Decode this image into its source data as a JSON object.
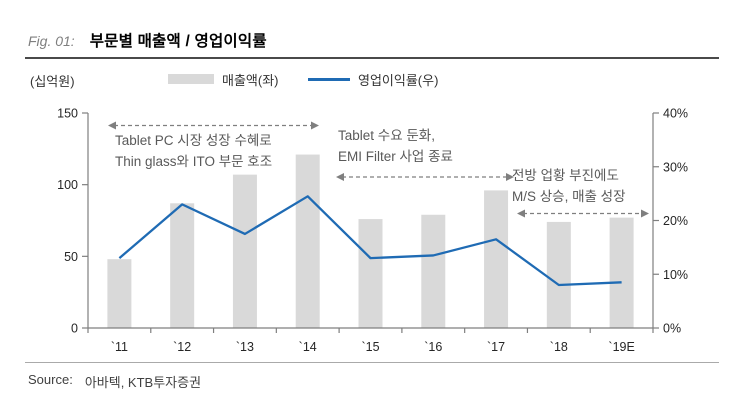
{
  "header": {
    "fig_label": "Fig. 01:",
    "title": "부문별 매출액 / 영업이익률"
  },
  "legend": {
    "unit_label": "(십억원)",
    "bar_label": "매출액(좌)",
    "line_label": "영업이익률(우)"
  },
  "annotations": [
    {
      "lines": [
        "Tablet PC 시장 성장 수혜로",
        "Thin glass와 ITO 부문 호조"
      ]
    },
    {
      "lines": [
        "Tablet 수요 둔화,",
        "EMI Filter 사업 종료"
      ]
    },
    {
      "lines": [
        "전방 업황 부진에도",
        "M/S 상승, 매출 성장"
      ]
    }
  ],
  "footer": {
    "source_label": "Source:",
    "source_value": "아바텍, KTB투자증권"
  },
  "colors": {
    "bar": "#d9d9d9",
    "line": "#1f6bb4",
    "axis": "#7f7f7f",
    "tick_text": "#262626",
    "arrow": "#7f7f7f"
  },
  "chart_data": {
    "type": "bar",
    "subtype": "bar+line combo",
    "categories": [
      "`11",
      "`12",
      "`13",
      "`14",
      "`15",
      "`16",
      "`17",
      "`18",
      "`19E"
    ],
    "series": [
      {
        "name": "매출액(좌)",
        "type": "bar",
        "axis": "left",
        "values": [
          48,
          87,
          107,
          121,
          76,
          79,
          96,
          74,
          77
        ]
      },
      {
        "name": "영업이익률(우)",
        "type": "line",
        "axis": "right",
        "values": [
          13,
          23,
          17.5,
          24.5,
          13,
          13.5,
          16.5,
          8,
          8.5
        ]
      }
    ],
    "title": "부문별 매출액 / 영업이익률",
    "xlabel": "",
    "ylabel_left": "십억원",
    "left_axis": {
      "range": [
        0,
        150
      ],
      "ticks": [
        0,
        50,
        100,
        150
      ]
    },
    "right_axis": {
      "range": [
        0,
        40
      ],
      "ticks": [
        0,
        10,
        20,
        30,
        40
      ],
      "format": "percent"
    },
    "grid": false,
    "legend_position": "top"
  }
}
